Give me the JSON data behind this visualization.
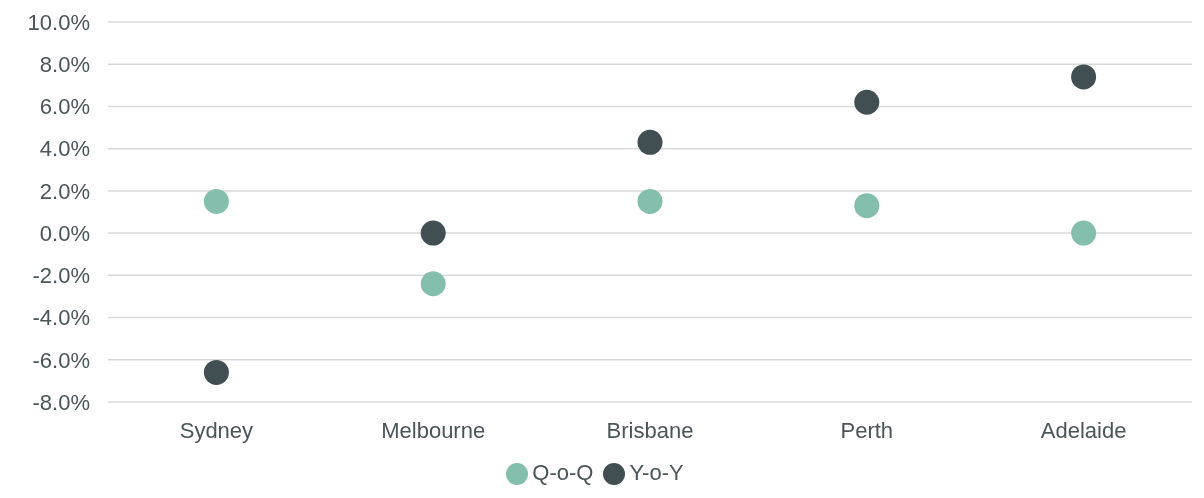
{
  "chart_data": {
    "type": "scatter",
    "categories": [
      "Sydney",
      "Melbourne",
      "Brisbane",
      "Perth",
      "Adelaide"
    ],
    "series": [
      {
        "name": "Q-o-Q",
        "color": "#84bfad",
        "values": [
          1.5,
          -2.4,
          1.5,
          1.3,
          0.0
        ]
      },
      {
        "name": "Y-o-Y",
        "color": "#414f52",
        "values": [
          -6.6,
          0.0,
          4.3,
          6.2,
          7.4
        ]
      }
    ],
    "ylim": [
      -8,
      10
    ],
    "yticks": [
      {
        "value": -8,
        "label": "-8.0%"
      },
      {
        "value": -6,
        "label": "-6.0%"
      },
      {
        "value": -4,
        "label": "-4.0%"
      },
      {
        "value": -2,
        "label": "-2.0%"
      },
      {
        "value": 0,
        "label": "0.0%"
      },
      {
        "value": 2,
        "label": "2.0%"
      },
      {
        "value": 4,
        "label": "4.0%"
      },
      {
        "value": 6,
        "label": "6.0%"
      },
      {
        "value": 8,
        "label": "8.0%"
      },
      {
        "value": 10,
        "label": "10.0%"
      }
    ],
    "grid": "y",
    "legend": "bottom",
    "marker": "circle"
  }
}
